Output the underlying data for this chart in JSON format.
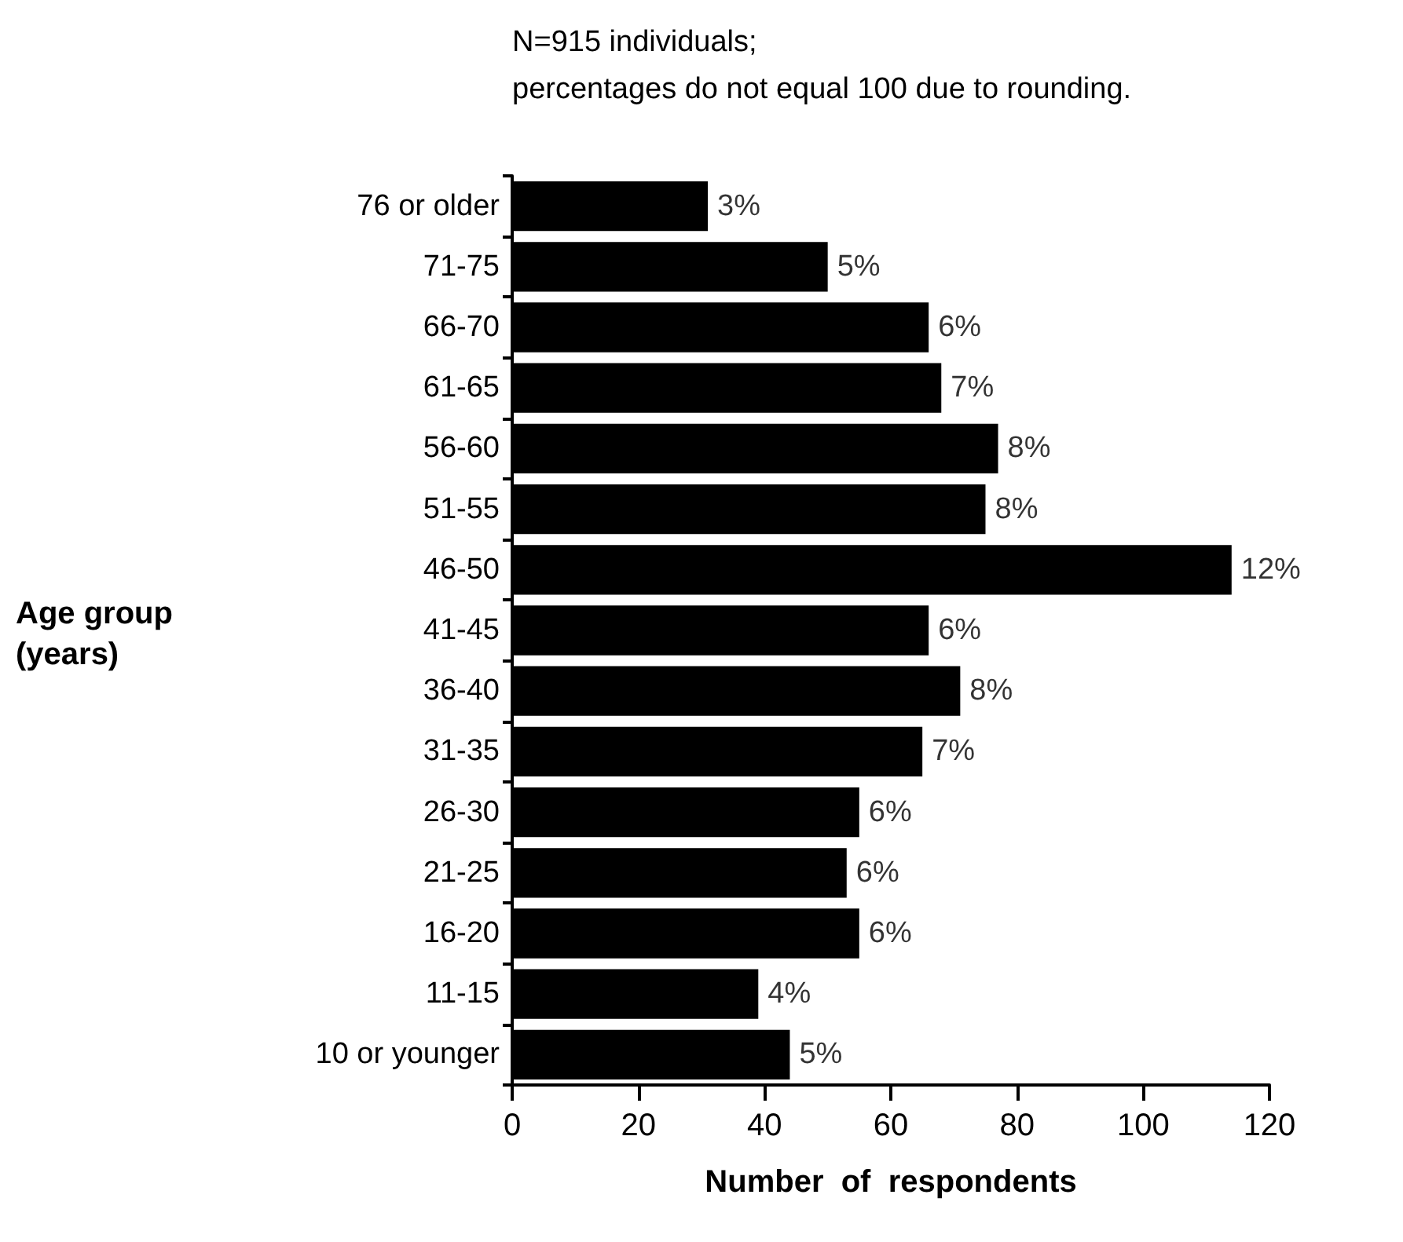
{
  "chart_data": {
    "type": "bar",
    "orientation": "horizontal",
    "categories": [
      "76 or older",
      "71-75",
      "66-70",
      "61-65",
      "56-60",
      "51-55",
      "46-50",
      "41-45",
      "36-40",
      "31-35",
      "26-30",
      "21-25",
      "16-20",
      "11-15",
      "10 or younger"
    ],
    "values": [
      31,
      50,
      66,
      68,
      77,
      75,
      114,
      66,
      71,
      65,
      55,
      53,
      55,
      39,
      44
    ],
    "color": "#000000",
    "xlim": [
      0,
      120
    ],
    "xticks": [
      0,
      20,
      40,
      60,
      80,
      100,
      120
    ],
    "xlabel": "Number  of  respondents",
    "ylabel": "Age group\n(years)",
    "annotations": [
      "N=915 individuals;\npercentages do not equal 100 due to rounding.",
      {
        "text": "3%",
        "x": 31,
        "y": "76 or older"
      },
      {
        "text": "5%",
        "x": 50,
        "y": "71-75"
      },
      {
        "text": "6%",
        "x": 66,
        "y": "66-70"
      },
      {
        "text": "7%",
        "x": 68,
        "y": "61-65"
      },
      {
        "text": "8%",
        "x": 77,
        "y": "56-60"
      },
      {
        "text": "8%",
        "x": 75,
        "y": "51-55"
      },
      {
        "text": "12%",
        "x": 114,
        "y": "46-50"
      },
      {
        "text": "6%",
        "x": 66,
        "y": "41-45"
      },
      {
        "text": "8%",
        "x": 71,
        "y": "36-40"
      },
      {
        "text": "7%",
        "x": 65,
        "y": "31-35"
      },
      {
        "text": "6%",
        "x": 55,
        "y": "26-30"
      },
      {
        "text": "6%",
        "x": 53,
        "y": "21-25"
      },
      {
        "text": "6%",
        "x": 55,
        "y": "16-20"
      },
      {
        "text": "4%",
        "x": 39,
        "y": "11-15"
      },
      {
        "text": "5%",
        "x": 44,
        "y": "10 or younger"
      }
    ],
    "grid": false
  }
}
